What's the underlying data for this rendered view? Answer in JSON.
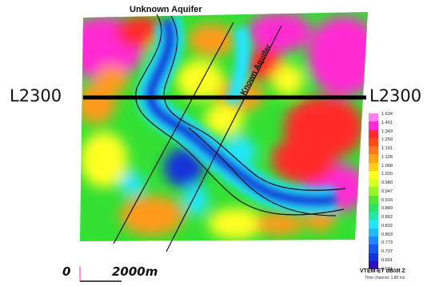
{
  "map": {
    "title_top": "Unknown Aquifer",
    "aquifer_label": "Known Aquifer",
    "line_left": "L2300",
    "line_right": "L2300",
    "colors": {
      "magenta": "#ff2bd2",
      "red": "#ff2a2a",
      "orange": "#ff9a1a",
      "yellow": "#ffff22",
      "green": "#33e033",
      "cyan": "#22e6ff",
      "blue": "#1433d9",
      "line": "#111111"
    }
  },
  "legend": {
    "values": [
      "1.634",
      "1.451",
      "1.343",
      "1.259",
      "1.191",
      "1.128",
      "1.068",
      "1.020",
      "0.980",
      "0.947",
      "0.916",
      "0.889",
      "0.862",
      "0.832",
      "0.803",
      "0.773",
      "0.737",
      "0.691",
      "0.621"
    ],
    "title": "VTEM-ET dB/dt Z",
    "subtitle": "Time channel: 1.80 ms"
  },
  "scale": {
    "start": "0",
    "end": "2000m"
  }
}
